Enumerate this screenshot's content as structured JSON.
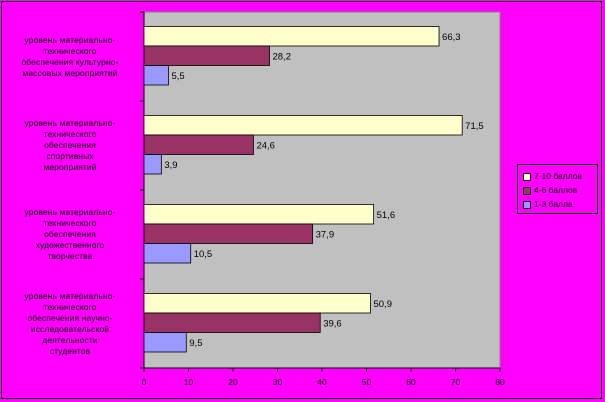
{
  "chart_data": {
    "type": "bar",
    "orientation": "horizontal",
    "categories": [
      "уровень материально-технического обеспечения культурно-массовых мероприятий",
      "уровень материально-технического обеспечения спортивных мероприятий",
      "уровень материально-технического обеспечения художественного творчества",
      "уровень материально-технического обеспечения научно-исследовательской деятельности студентов"
    ],
    "category_lines": [
      [
        "уровень материально-",
        "технического",
        "обеспечения культурно-",
        "массовых мероприятий"
      ],
      [
        "уровень материально-",
        "технического",
        "обеспечения",
        "спортивных",
        "мероприятий"
      ],
      [
        "уровень материально-",
        "технического",
        "обеспечения",
        "художественного",
        "творчества"
      ],
      [
        "уровень материально-",
        "технического",
        "обеспечения научно-",
        "исследовательской",
        "деятельности",
        "студентов"
      ]
    ],
    "series": [
      {
        "name": "7-10 баллов",
        "color": "#ffffcc",
        "values": [
          66.3,
          71.5,
          51.6,
          50.9
        ],
        "labels": [
          "66,3",
          "71,5",
          "51,6",
          "50,9"
        ]
      },
      {
        "name": "4-6 баллов",
        "color": "#993366",
        "values": [
          28.2,
          24.6,
          37.9,
          39.6
        ],
        "labels": [
          "28,2",
          "24,6",
          "37,9",
          "39,6"
        ]
      },
      {
        "name": "1-3 балла",
        "color": "#9999ff",
        "values": [
          5.5,
          3.9,
          10.5,
          9.5
        ],
        "labels": [
          "5,5",
          "3,9",
          "10,5",
          "9,5"
        ]
      }
    ],
    "xlim": [
      0,
      80
    ],
    "xticks": [
      0,
      10,
      20,
      30,
      40,
      50,
      60,
      70,
      80
    ],
    "title": "",
    "xlabel": "",
    "ylabel": "",
    "legend": "right",
    "plot_background": "#c0c0c0",
    "page_background": "#ff00ff",
    "grid": false
  }
}
